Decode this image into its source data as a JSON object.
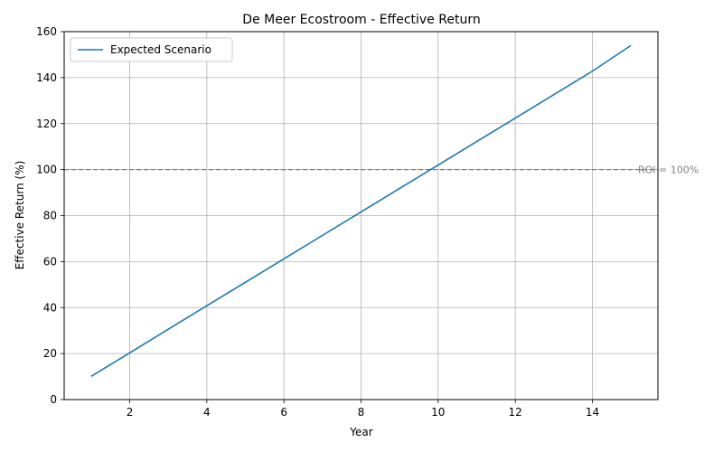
{
  "chart_data": {
    "type": "line",
    "title": "De Meer Ecostroom - Effective Return",
    "xlabel": "Year",
    "ylabel": "Effective Return (%)",
    "xlim": [
      0.3,
      15.7
    ],
    "ylim": [
      0,
      160
    ],
    "x_ticks": [
      2,
      4,
      6,
      8,
      10,
      12,
      14
    ],
    "y_ticks": [
      0,
      20,
      40,
      60,
      80,
      100,
      120,
      140,
      160
    ],
    "grid": true,
    "legend_position": "upper-left",
    "x": [
      1,
      2,
      3,
      4,
      5,
      6,
      7,
      8,
      9,
      10,
      11,
      12,
      13,
      14,
      15
    ],
    "series": [
      {
        "name": "Expected Scenario",
        "color": "#1f77b4",
        "values": [
          10.1,
          20.3,
          30.6,
          40.8,
          51.0,
          61.2,
          71.4,
          81.6,
          91.8,
          102.0,
          112.2,
          122.4,
          132.6,
          142.8,
          154.0
        ]
      }
    ],
    "reference_line": {
      "y": 100,
      "label": "ROI = 100%",
      "color": "#808080",
      "style": "dashed"
    }
  }
}
